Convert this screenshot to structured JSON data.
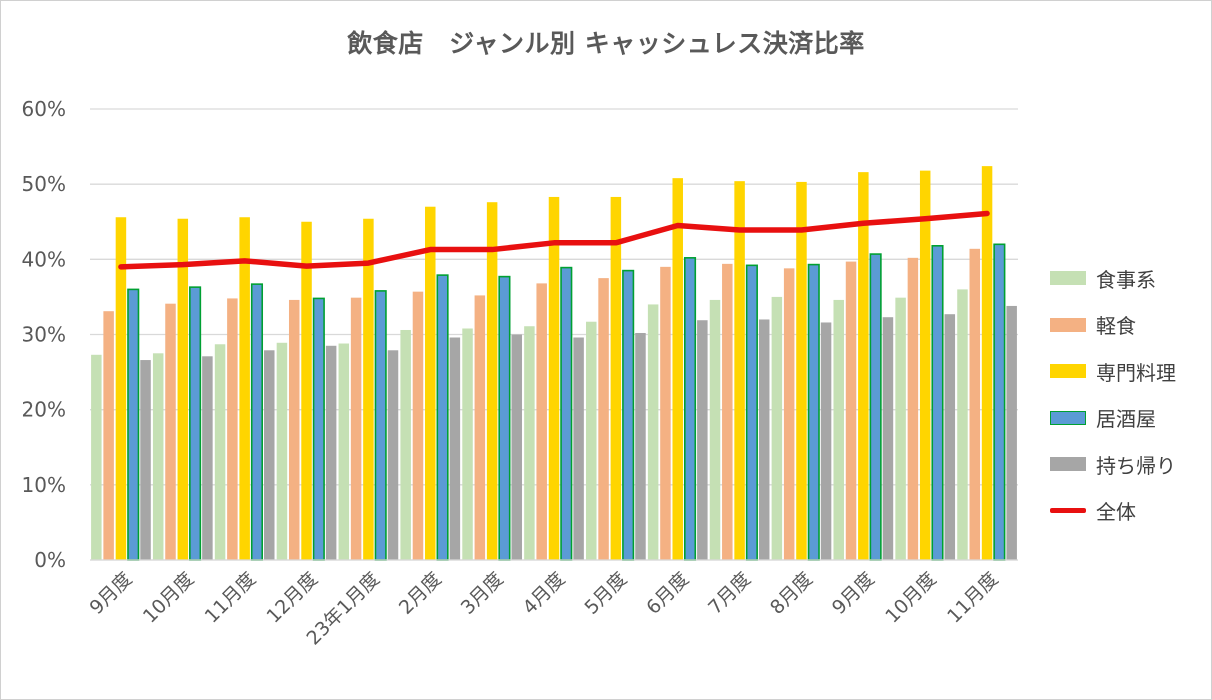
{
  "chart_data": {
    "type": "bar",
    "title": "飲食店　ジャンル別 キャッシュレス決済比率",
    "categories": [
      "9月度",
      "10月度",
      "11月度",
      "12月度",
      "23年1月度",
      "2月度",
      "3月度",
      "4月度",
      "5月度",
      "6月度",
      "7月度",
      "8月度",
      "9月度",
      "10月度",
      "11月度"
    ],
    "ylim": [
      0,
      60
    ],
    "yticks": [
      "0%",
      "10%",
      "20%",
      "30%",
      "40%",
      "50%",
      "60%"
    ],
    "series": [
      {
        "name": "食事系",
        "kind": "bar",
        "color": "#c5e0b4",
        "values": [
          27.3,
          27.5,
          28.7,
          28.9,
          28.8,
          30.6,
          30.8,
          31.1,
          31.7,
          34.0,
          34.6,
          35.0,
          34.6,
          34.9,
          36.0
        ]
      },
      {
        "name": "軽食",
        "kind": "bar",
        "color": "#f4b183",
        "values": [
          33.1,
          34.1,
          34.8,
          34.6,
          34.9,
          35.7,
          35.2,
          36.8,
          37.5,
          39.0,
          39.4,
          38.8,
          39.7,
          40.2,
          41.4
        ]
      },
      {
        "name": "専門料理",
        "kind": "bar",
        "color": "#ffd500",
        "values": [
          45.6,
          45.4,
          45.6,
          45.0,
          45.4,
          47.0,
          47.6,
          48.3,
          48.3,
          50.8,
          50.4,
          50.3,
          51.6,
          51.8,
          52.4
        ]
      },
      {
        "name": "居酒屋",
        "kind": "bar",
        "color": "#5b9bd5",
        "border": "#00a032",
        "values": [
          36.0,
          36.3,
          36.7,
          34.8,
          35.8,
          37.9,
          37.7,
          38.9,
          38.5,
          40.2,
          39.2,
          39.3,
          40.7,
          41.8,
          42.0
        ]
      },
      {
        "name": "持ち帰り",
        "kind": "bar",
        "color": "#a6a6a6",
        "values": [
          26.6,
          27.1,
          27.9,
          28.5,
          27.9,
          29.6,
          30.0,
          29.6,
          30.2,
          31.9,
          32.0,
          31.6,
          32.3,
          32.7,
          33.8
        ]
      },
      {
        "name": "全体",
        "kind": "line",
        "color": "#e81010",
        "values": [
          39.0,
          39.3,
          39.8,
          39.1,
          39.5,
          41.3,
          41.3,
          42.2,
          42.2,
          44.5,
          43.9,
          43.9,
          44.8,
          45.4,
          46.1
        ]
      }
    ],
    "grid": true,
    "legend_position": "right"
  }
}
